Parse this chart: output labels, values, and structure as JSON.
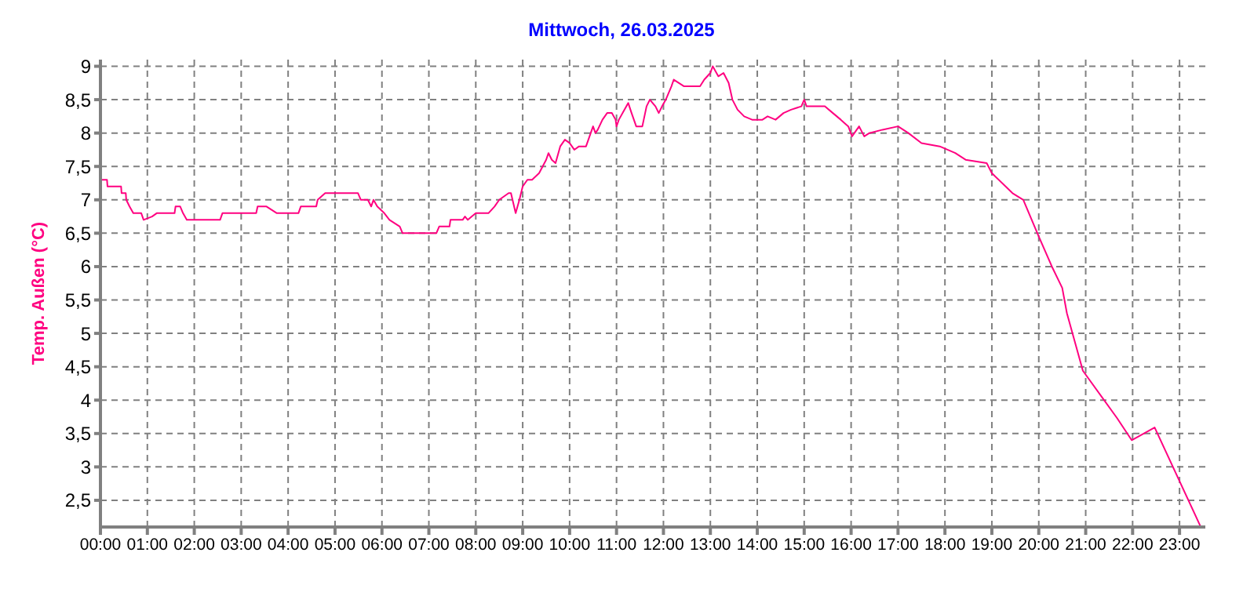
{
  "chart_data": {
    "type": "line",
    "title": "Mittwoch, 26.03.2025",
    "ylabel": "Temp. Außen  (°C)",
    "x": [
      0,
      0.14,
      0.15,
      0.44,
      0.45,
      0.54,
      0.55,
      0.62,
      0.7,
      0.87,
      0.92,
      1.1,
      1.2,
      1.58,
      1.6,
      1.7,
      1.76,
      1.84,
      2.55,
      2.6,
      3.32,
      3.35,
      3.54,
      3.76,
      4.22,
      4.27,
      4.6,
      4.63,
      4.79,
      5.49,
      5.55,
      5.7,
      5.77,
      5.82,
      5.9,
      6.05,
      6.16,
      6.38,
      6.44,
      7.16,
      7.22,
      7.44,
      7.46,
      7.72,
      7.77,
      7.83,
      8.0,
      8.27,
      8.4,
      8.5,
      8.7,
      8.75,
      8.85,
      8.93,
      9.0,
      9.1,
      9.2,
      9.35,
      9.5,
      9.55,
      9.62,
      9.7,
      9.8,
      9.9,
      10.0,
      10.1,
      10.2,
      10.35,
      10.45,
      10.5,
      10.55,
      10.6,
      10.7,
      10.8,
      10.9,
      10.98,
      11.0,
      11.05,
      11.17,
      11.25,
      11.32,
      11.42,
      11.55,
      11.64,
      11.71,
      11.83,
      11.9,
      11.97,
      12.05,
      12.17,
      12.22,
      12.33,
      12.44,
      12.78,
      12.87,
      13.0,
      13.05,
      13.17,
      13.28,
      13.39,
      13.47,
      13.58,
      13.72,
      13.89,
      14.11,
      14.22,
      14.39,
      14.56,
      14.72,
      14.94,
      15.0,
      15.05,
      15.44,
      15.61,
      15.78,
      15.94,
      16.02,
      16.17,
      16.28,
      16.39,
      16.67,
      17.0,
      17.22,
      17.5,
      17.89,
      18.22,
      18.44,
      18.89,
      19.0,
      19.44,
      19.67,
      20.0,
      20.28,
      20.5,
      20.6,
      20.94,
      21.67,
      21.98,
      22.47,
      23.44
    ],
    "series": [
      {
        "color": "#ff0080",
        "values": [
          7.3,
          7.3,
          7.2,
          7.2,
          7.1,
          7.1,
          7.0,
          6.9,
          6.8,
          6.8,
          6.7,
          6.75,
          6.8,
          6.8,
          6.9,
          6.9,
          6.8,
          6.7,
          6.7,
          6.8,
          6.8,
          6.9,
          6.9,
          6.8,
          6.8,
          6.9,
          6.9,
          7.0,
          7.1,
          7.1,
          7.0,
          7.0,
          6.9,
          7.0,
          6.9,
          6.8,
          6.7,
          6.6,
          6.5,
          6.5,
          6.6,
          6.6,
          6.7,
          6.7,
          6.75,
          6.7,
          6.8,
          6.8,
          6.9,
          7.0,
          7.1,
          7.1,
          6.8,
          7.0,
          7.2,
          7.3,
          7.3,
          7.4,
          7.6,
          7.7,
          7.6,
          7.55,
          7.8,
          7.9,
          7.85,
          7.75,
          7.8,
          7.8,
          8.0,
          8.1,
          8.0,
          8.05,
          8.2,
          8.3,
          8.3,
          8.2,
          8.1,
          8.2,
          8.35,
          8.45,
          8.3,
          8.1,
          8.1,
          8.4,
          8.5,
          8.4,
          8.3,
          8.4,
          8.5,
          8.7,
          8.8,
          8.75,
          8.7,
          8.7,
          8.8,
          8.9,
          9.0,
          8.85,
          8.9,
          8.75,
          8.5,
          8.35,
          8.25,
          8.2,
          8.2,
          8.25,
          8.2,
          8.3,
          8.35,
          8.4,
          8.5,
          8.4,
          8.4,
          8.3,
          8.2,
          8.1,
          7.95,
          8.1,
          7.95,
          8.0,
          8.05,
          8.1,
          8.0,
          7.85,
          7.8,
          7.7,
          7.6,
          7.55,
          7.4,
          7.1,
          7.0,
          6.45,
          6.0,
          5.68,
          5.3,
          4.44,
          3.73,
          3.4,
          3.59,
          2.12
        ]
      }
    ],
    "xlim": [
      0,
      23.55
    ],
    "xticks": [
      {
        "value": 0,
        "label": "00:00"
      },
      {
        "value": 1,
        "label": "01:00"
      },
      {
        "value": 2,
        "label": "02:00"
      },
      {
        "value": 3,
        "label": "03:00"
      },
      {
        "value": 4,
        "label": "04:00"
      },
      {
        "value": 5,
        "label": "05:00"
      },
      {
        "value": 6,
        "label": "06:00"
      },
      {
        "value": 7,
        "label": "07:00"
      },
      {
        "value": 8,
        "label": "08:00"
      },
      {
        "value": 9,
        "label": "09:00"
      },
      {
        "value": 10,
        "label": "10:00"
      },
      {
        "value": 11,
        "label": "11:00"
      },
      {
        "value": 12,
        "label": "12:00"
      },
      {
        "value": 13,
        "label": "13:00"
      },
      {
        "value": 14,
        "label": "14:00"
      },
      {
        "value": 15,
        "label": "15:00"
      },
      {
        "value": 16,
        "label": "16:00"
      },
      {
        "value": 17,
        "label": "17:00"
      },
      {
        "value": 18,
        "label": "18:00"
      },
      {
        "value": 19,
        "label": "19:00"
      },
      {
        "value": 20,
        "label": "20:00"
      },
      {
        "value": 21,
        "label": "21:00"
      },
      {
        "value": 22,
        "label": "22:00"
      },
      {
        "value": 23,
        "label": "23:00"
      }
    ],
    "ylim": [
      2.1,
      9.1
    ],
    "yticks": [
      {
        "value": 2.5,
        "label": "2,5"
      },
      3,
      {
        "value": 3.5,
        "label": "3,5"
      },
      4,
      {
        "value": 4.5,
        "label": "4,5"
      },
      5,
      {
        "value": 5.5,
        "label": "5,5"
      },
      6,
      {
        "value": 6.5,
        "label": "6,5"
      },
      7,
      {
        "value": 7.5,
        "label": "7,5"
      },
      8,
      {
        "value": 8.5,
        "label": "8,5"
      },
      9
    ],
    "grid": true,
    "legend": false,
    "marker": "none",
    "line_style": "solid"
  }
}
